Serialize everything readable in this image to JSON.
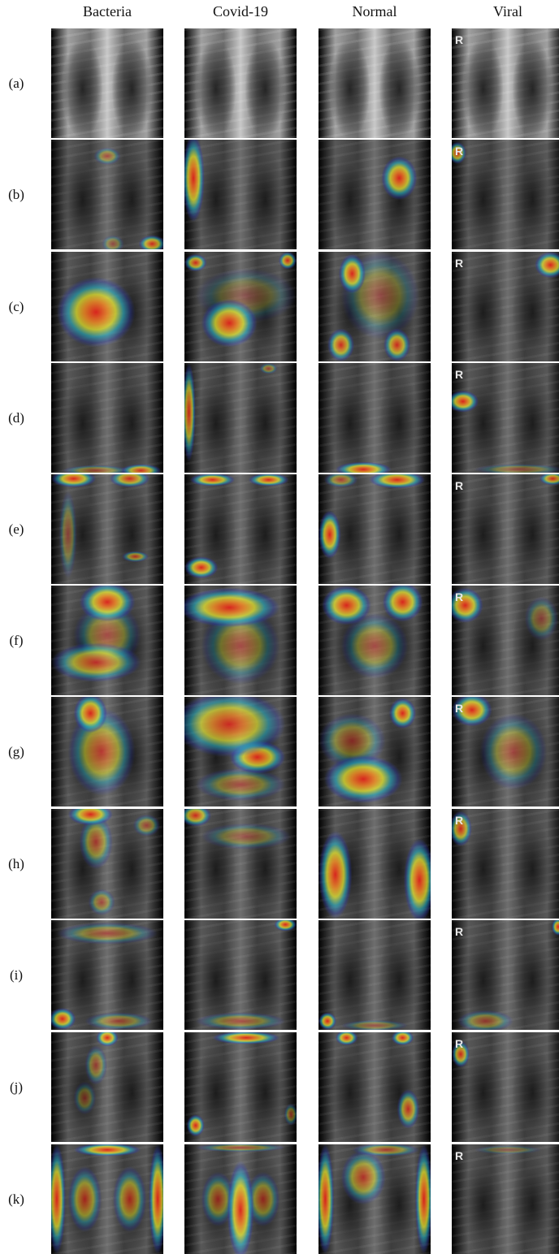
{
  "figure": {
    "columns": [
      {
        "label": "Bacteria"
      },
      {
        "label": "Covid-19"
      },
      {
        "label": "Normal"
      },
      {
        "label": "Viral"
      }
    ],
    "rows": [
      {
        "label": "(a)"
      },
      {
        "label": "(b)"
      },
      {
        "label": "(c)"
      },
      {
        "label": "(d)"
      },
      {
        "label": "(e)"
      },
      {
        "label": "(f)"
      },
      {
        "label": "(g)"
      },
      {
        "label": "(h)"
      },
      {
        "label": "(i)"
      },
      {
        "label": "(j)"
      },
      {
        "label": "(k)"
      }
    ],
    "viral_marker": "R",
    "heat_colors": [
      "#2b3fbf",
      "#27b5c9",
      "#e6e62e",
      "#f08a24",
      "#e0231c"
    ]
  }
}
